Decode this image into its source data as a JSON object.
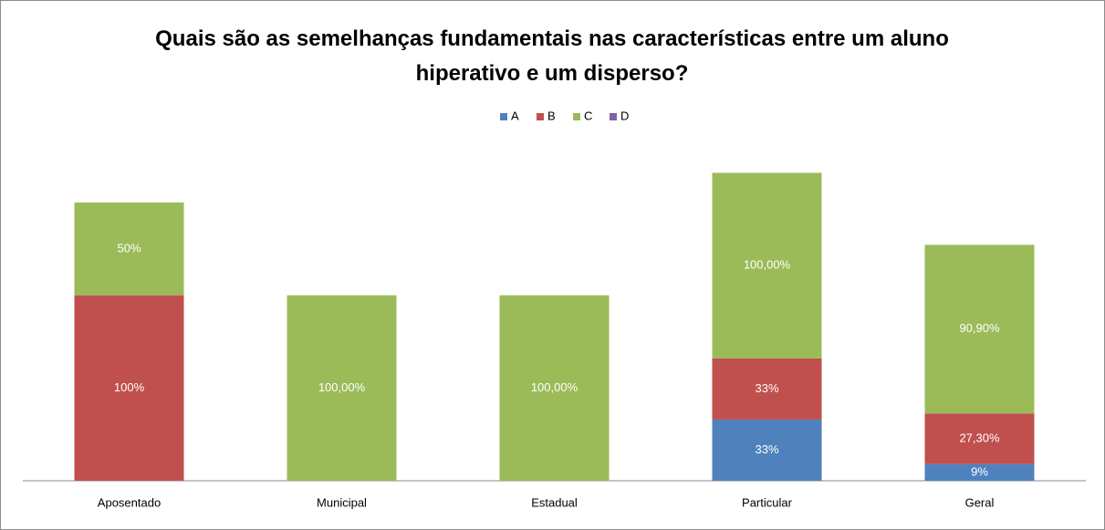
{
  "chart_data": {
    "type": "stacked_bar",
    "title": "Quais são as semelhanças fundamentais nas características entre um aluno hiperativo e um disperso?",
    "categories": [
      "Aposentado",
      "Municipal",
      "Estadual",
      "Particular",
      "Geral"
    ],
    "series": [
      {
        "name": "A",
        "color": "#4f81bd",
        "values": [
          null,
          null,
          null,
          33,
          9
        ],
        "value_labels": [
          null,
          null,
          null,
          "33%",
          "9%"
        ]
      },
      {
        "name": "B",
        "color": "#c0504d",
        "values": [
          100,
          null,
          null,
          33,
          27.3
        ],
        "value_labels": [
          "100%",
          null,
          null,
          "33%",
          "27,30%"
        ]
      },
      {
        "name": "C",
        "color": "#9bbb59",
        "values": [
          50,
          100,
          100,
          100,
          90.9
        ],
        "value_labels": [
          "50%",
          "100,00%",
          "100,00%",
          "100,00%",
          "90,90%"
        ]
      },
      {
        "name": "D",
        "color": "#8064a2",
        "values": [
          null,
          null,
          null,
          null,
          null
        ]
      }
    ],
    "ylim": [
      0,
      180
    ],
    "legend": "top"
  }
}
